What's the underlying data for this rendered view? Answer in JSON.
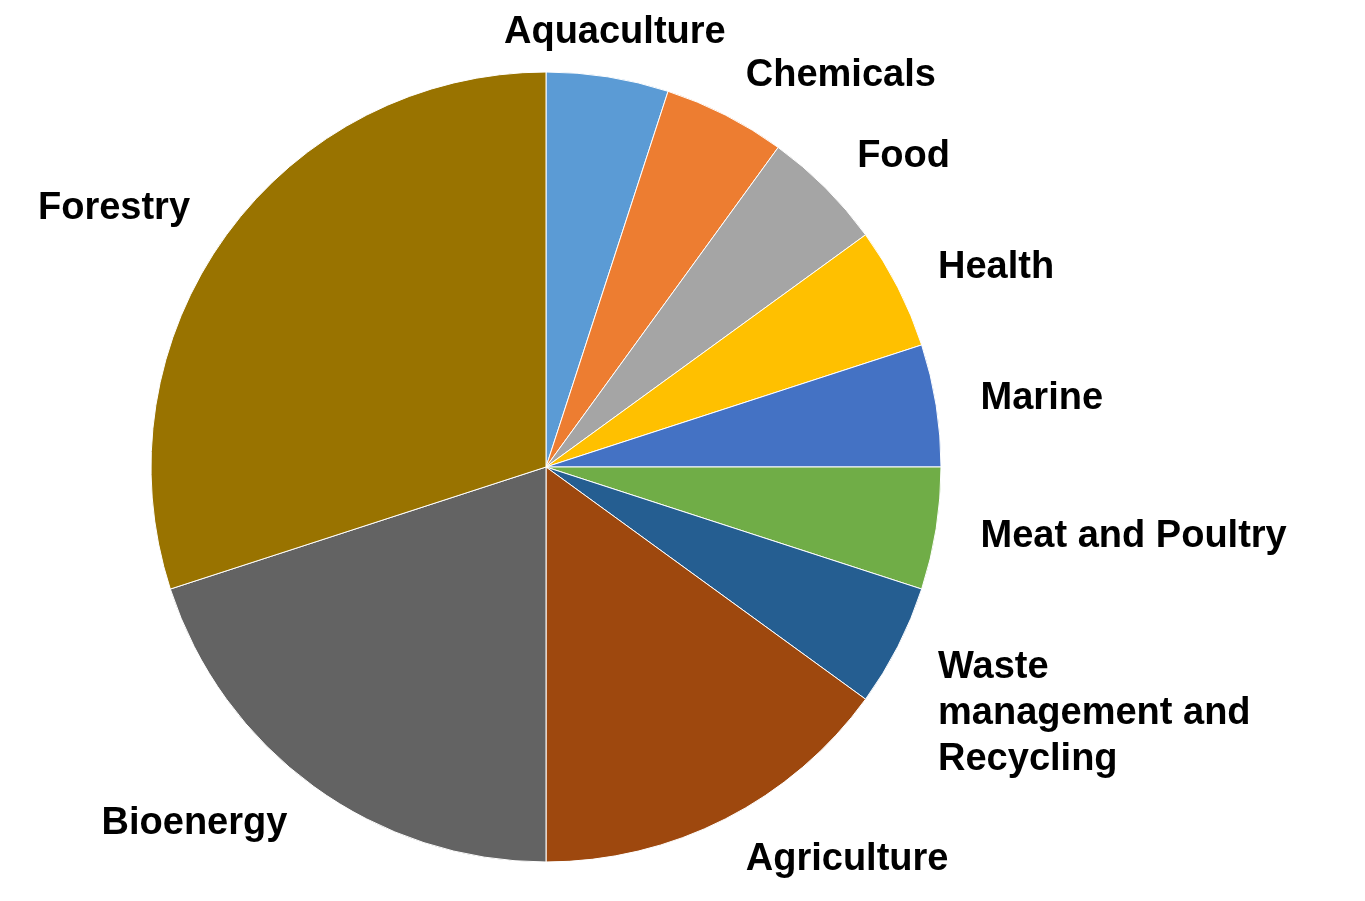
{
  "chart_data": {
    "type": "pie",
    "categories": [
      "Aquaculture",
      "Chemicals",
      "Food",
      "Health",
      "Marine",
      "Meat and Poultry",
      "Waste management and Recycling",
      "Agriculture",
      "Bioenergy",
      "Forestry"
    ],
    "values": [
      5,
      5,
      5,
      5,
      5,
      5,
      5,
      15,
      20,
      30
    ],
    "colors": [
      "#5b9bd5",
      "#ed7d31",
      "#a5a5a5",
      "#ffc000",
      "#4472c4",
      "#70ad47",
      "#255e91",
      "#9e480e",
      "#636363",
      "#997300"
    ]
  }
}
